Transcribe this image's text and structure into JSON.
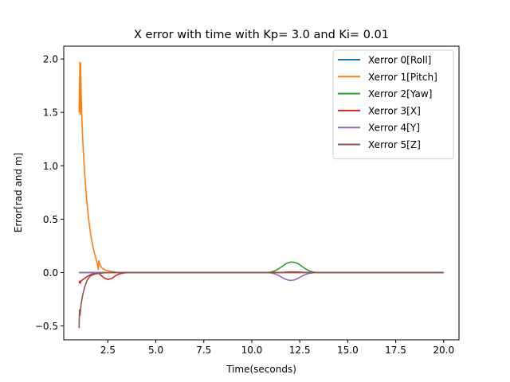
{
  "chart_data": {
    "type": "line",
    "title": "X error with time with Kp= 3.0 and Ki= 0.01",
    "xlabel": "Time(seconds)",
    "ylabel": "Error[rad and m]",
    "xlim": [
      0.2,
      20.8
    ],
    "ylim": [
      -0.63,
      2.12
    ],
    "xticks": [
      2.5,
      5.0,
      7.5,
      10.0,
      12.5,
      15.0,
      17.5,
      20.0
    ],
    "xtick_labels": [
      "2.5",
      "5.0",
      "7.5",
      "10.0",
      "12.5",
      "15.0",
      "17.5",
      "20.0"
    ],
    "yticks": [
      -0.5,
      0.0,
      0.5,
      1.0,
      1.5,
      2.0
    ],
    "ytick_labels": [
      "−0.5",
      "0.0",
      "0.5",
      "1.0",
      "1.5",
      "2.0"
    ],
    "grid": false,
    "legend_position": "top-right",
    "series": [
      {
        "name": "Xerror 0[Roll]",
        "color": "#1f77b4",
        "points": [
          [
            1.0,
            0.0
          ],
          [
            20.0,
            0.0
          ]
        ]
      },
      {
        "name": "Xerror 1[Pitch]",
        "color": "#ff7f0e",
        "points": [
          [
            1.0,
            1.5
          ],
          [
            1.02,
            1.7
          ],
          [
            1.04,
            1.97
          ],
          [
            1.06,
            1.48
          ],
          [
            1.08,
            1.96
          ],
          [
            1.1,
            1.72
          ],
          [
            1.15,
            1.42
          ],
          [
            1.2,
            1.2
          ],
          [
            1.3,
            0.9
          ],
          [
            1.4,
            0.67
          ],
          [
            1.5,
            0.5
          ],
          [
            1.6,
            0.36
          ],
          [
            1.7,
            0.26
          ],
          [
            1.8,
            0.18
          ],
          [
            1.9,
            0.12
          ],
          [
            1.97,
            0.06
          ],
          [
            2.0,
            0.03
          ],
          [
            2.03,
            0.11
          ],
          [
            2.1,
            0.07
          ],
          [
            2.2,
            0.04
          ],
          [
            2.4,
            0.02
          ],
          [
            2.7,
            0.01
          ],
          [
            3.0,
            0.0
          ],
          [
            3.5,
            0.0
          ],
          [
            20.0,
            0.0
          ]
        ]
      },
      {
        "name": "Xerror 2[Yaw]",
        "color": "#2ca02c",
        "points": [
          [
            1.0,
            0.0
          ],
          [
            10.8,
            0.0
          ],
          [
            11.0,
            0.005
          ],
          [
            11.2,
            0.015
          ],
          [
            11.4,
            0.035
          ],
          [
            11.6,
            0.06
          ],
          [
            11.8,
            0.085
          ],
          [
            12.0,
            0.098
          ],
          [
            12.2,
            0.097
          ],
          [
            12.4,
            0.085
          ],
          [
            12.6,
            0.06
          ],
          [
            12.8,
            0.035
          ],
          [
            13.0,
            0.015
          ],
          [
            13.2,
            0.005
          ],
          [
            13.4,
            0.0
          ],
          [
            20.0,
            0.0
          ]
        ]
      },
      {
        "name": "Xerror 3[X]",
        "color": "#d62728",
        "points": [
          [
            1.0,
            -0.1
          ],
          [
            1.03,
            -0.08
          ],
          [
            1.06,
            -0.1
          ],
          [
            1.1,
            -0.08
          ],
          [
            1.2,
            -0.065
          ],
          [
            1.4,
            -0.04
          ],
          [
            1.6,
            -0.02
          ],
          [
            1.8,
            -0.008
          ],
          [
            2.0,
            -0.005
          ],
          [
            2.1,
            -0.02
          ],
          [
            2.3,
            -0.05
          ],
          [
            2.5,
            -0.065
          ],
          [
            2.7,
            -0.055
          ],
          [
            2.9,
            -0.03
          ],
          [
            3.1,
            -0.012
          ],
          [
            3.4,
            -0.003
          ],
          [
            3.8,
            0.0
          ],
          [
            11.5,
            0.0
          ],
          [
            12.0,
            0.006
          ],
          [
            12.5,
            0.004
          ],
          [
            13.0,
            0.0
          ],
          [
            20.0,
            0.0
          ]
        ]
      },
      {
        "name": "Xerror 4[Y]",
        "color": "#9467bd",
        "points": [
          [
            1.0,
            0.0
          ],
          [
            10.8,
            0.0
          ],
          [
            11.0,
            -0.004
          ],
          [
            11.2,
            -0.012
          ],
          [
            11.4,
            -0.028
          ],
          [
            11.6,
            -0.048
          ],
          [
            11.8,
            -0.066
          ],
          [
            12.0,
            -0.074
          ],
          [
            12.2,
            -0.07
          ],
          [
            12.4,
            -0.055
          ],
          [
            12.6,
            -0.035
          ],
          [
            12.8,
            -0.018
          ],
          [
            13.0,
            -0.007
          ],
          [
            13.2,
            -0.002
          ],
          [
            13.4,
            0.0
          ],
          [
            20.0,
            0.0
          ]
        ]
      },
      {
        "name": "Xerror 5[Z]",
        "color": "#8c564b",
        "points": [
          [
            1.0,
            -0.52
          ],
          [
            1.02,
            -0.35
          ],
          [
            1.05,
            -0.4
          ],
          [
            1.1,
            -0.3
          ],
          [
            1.2,
            -0.2
          ],
          [
            1.3,
            -0.13
          ],
          [
            1.4,
            -0.08
          ],
          [
            1.5,
            -0.05
          ],
          [
            1.6,
            -0.03
          ],
          [
            1.8,
            -0.015
          ],
          [
            2.0,
            -0.008
          ],
          [
            2.3,
            -0.003
          ],
          [
            2.7,
            0.0
          ],
          [
            20.0,
            0.0
          ]
        ]
      }
    ]
  }
}
